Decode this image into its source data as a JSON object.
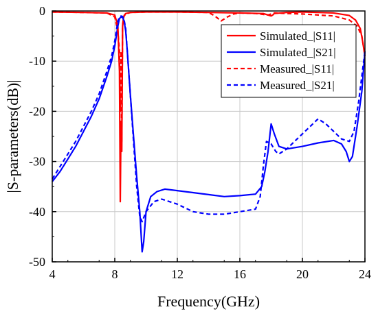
{
  "chart_data": {
    "type": "line",
    "title": "",
    "xlabel": "Frequency(GHz)",
    "ylabel": "|S-parameters(dB)|",
    "xlim": [
      4,
      24
    ],
    "ylim": [
      -50,
      0
    ],
    "xticks": [
      4,
      8,
      12,
      16,
      20,
      24
    ],
    "yticks": [
      0,
      -10,
      -20,
      -30,
      -40,
      -50
    ],
    "grid": true,
    "legend_position": "top-right",
    "series": [
      {
        "name": "Simulated_|S11|",
        "color": "#ff0000",
        "dash": "solid",
        "x": [
          4,
          6,
          7.5,
          8.0,
          8.2,
          8.3,
          8.35,
          8.4,
          8.45,
          8.5,
          8.55,
          8.6,
          8.7,
          9,
          10,
          12,
          14,
          16,
          17.5,
          18,
          18.1,
          18.2,
          19,
          20,
          21,
          22,
          23,
          23.4,
          23.7,
          23.85,
          24
        ],
        "y": [
          -0.2,
          -0.3,
          -0.4,
          -0.8,
          -3,
          -12,
          -38,
          -22,
          -28,
          -3,
          -1.5,
          -0.9,
          -0.5,
          -0.3,
          -0.2,
          -0.2,
          -0.3,
          -0.4,
          -0.5,
          -1.0,
          -0.8,
          -0.5,
          -0.3,
          -0.2,
          -0.3,
          -0.4,
          -0.9,
          -1.8,
          -3.5,
          -6,
          -9
        ]
      },
      {
        "name": "Simulated_|S21|",
        "color": "#0000ff",
        "dash": "solid",
        "x": [
          4,
          4.5,
          5,
          5.5,
          6,
          6.5,
          7,
          7.5,
          7.8,
          8.0,
          8.2,
          8.3,
          8.4,
          8.5,
          8.6,
          8.7,
          8.8,
          9.0,
          9.2,
          9.4,
          9.6,
          9.75,
          9.85,
          10,
          10.3,
          10.7,
          11.2,
          12,
          13,
          14,
          15,
          16,
          17,
          17.4,
          17.6,
          17.8,
          18.0,
          18.2,
          18.5,
          19,
          20,
          21,
          22,
          22.5,
          22.8,
          23.0,
          23.2,
          23.5,
          23.8,
          24
        ],
        "y": [
          -34,
          -32,
          -29.5,
          -27,
          -24,
          -21,
          -17.5,
          -13,
          -10,
          -7,
          -3,
          -1.5,
          -1.2,
          -1.3,
          -2,
          -4,
          -8,
          -17,
          -25,
          -33,
          -40,
          -48,
          -46,
          -40,
          -37,
          -36,
          -35.5,
          -35.8,
          -36.2,
          -36.6,
          -37,
          -36.8,
          -36.5,
          -35,
          -32,
          -28,
          -22.5,
          -24.5,
          -27,
          -27.5,
          -27,
          -26.3,
          -25.8,
          -26.5,
          -28,
          -30,
          -29,
          -23,
          -16,
          -8
        ]
      },
      {
        "name": "Measured_|S11|",
        "color": "#ff0000",
        "dash": "dashed",
        "x": [
          4,
          6,
          7.5,
          8.0,
          8.2,
          8.3,
          8.35,
          8.4,
          8.45,
          8.5,
          8.55,
          8.6,
          8.7,
          9,
          10,
          12,
          14,
          14.4,
          14.8,
          15.2,
          15.6,
          16,
          17,
          17.8,
          18,
          18.2,
          19,
          20,
          21,
          22,
          23,
          23.5,
          23.8,
          24
        ],
        "y": [
          -0.2,
          -0.3,
          -0.4,
          -1.2,
          -4,
          -8,
          -20,
          -8,
          -26,
          -3,
          -1.5,
          -1.0,
          -0.6,
          -0.3,
          -0.2,
          -0.2,
          -0.3,
          -1.0,
          -2.0,
          -1.2,
          -0.6,
          -0.4,
          -0.5,
          -0.8,
          -0.6,
          -0.4,
          -0.5,
          -0.6,
          -0.8,
          -1.0,
          -1.8,
          -3,
          -5,
          -9
        ]
      },
      {
        "name": "Measured_|S21|",
        "color": "#0000ff",
        "dash": "dashed",
        "x": [
          4,
          4.5,
          5,
          5.5,
          6,
          6.5,
          7,
          7.5,
          7.8,
          8.0,
          8.2,
          8.3,
          8.4,
          8.5,
          8.6,
          8.7,
          8.8,
          9.0,
          9.2,
          9.4,
          9.6,
          9.75,
          10,
          10.5,
          11,
          12,
          13,
          14,
          15,
          16,
          17,
          17.3,
          17.5,
          17.7,
          18.0,
          18.3,
          18.5,
          19,
          19.5,
          20,
          20.5,
          21,
          21.5,
          22,
          22.5,
          23,
          23.3,
          23.6,
          24
        ],
        "y": [
          -33.5,
          -31,
          -28.5,
          -26,
          -23,
          -20,
          -16.5,
          -12,
          -9,
          -6,
          -2,
          -1.2,
          -1.0,
          -1.1,
          -1.8,
          -3.5,
          -8,
          -17,
          -26,
          -35,
          -41,
          -42,
          -40,
          -38,
          -37.5,
          -38.5,
          -40,
          -40.5,
          -40.5,
          -40,
          -39.5,
          -37,
          -31,
          -26,
          -26.5,
          -28,
          -28.5,
          -27.5,
          -26,
          -24.5,
          -23,
          -21.5,
          -22.5,
          -24,
          -25.5,
          -26,
          -24,
          -18,
          -8
        ]
      }
    ]
  }
}
